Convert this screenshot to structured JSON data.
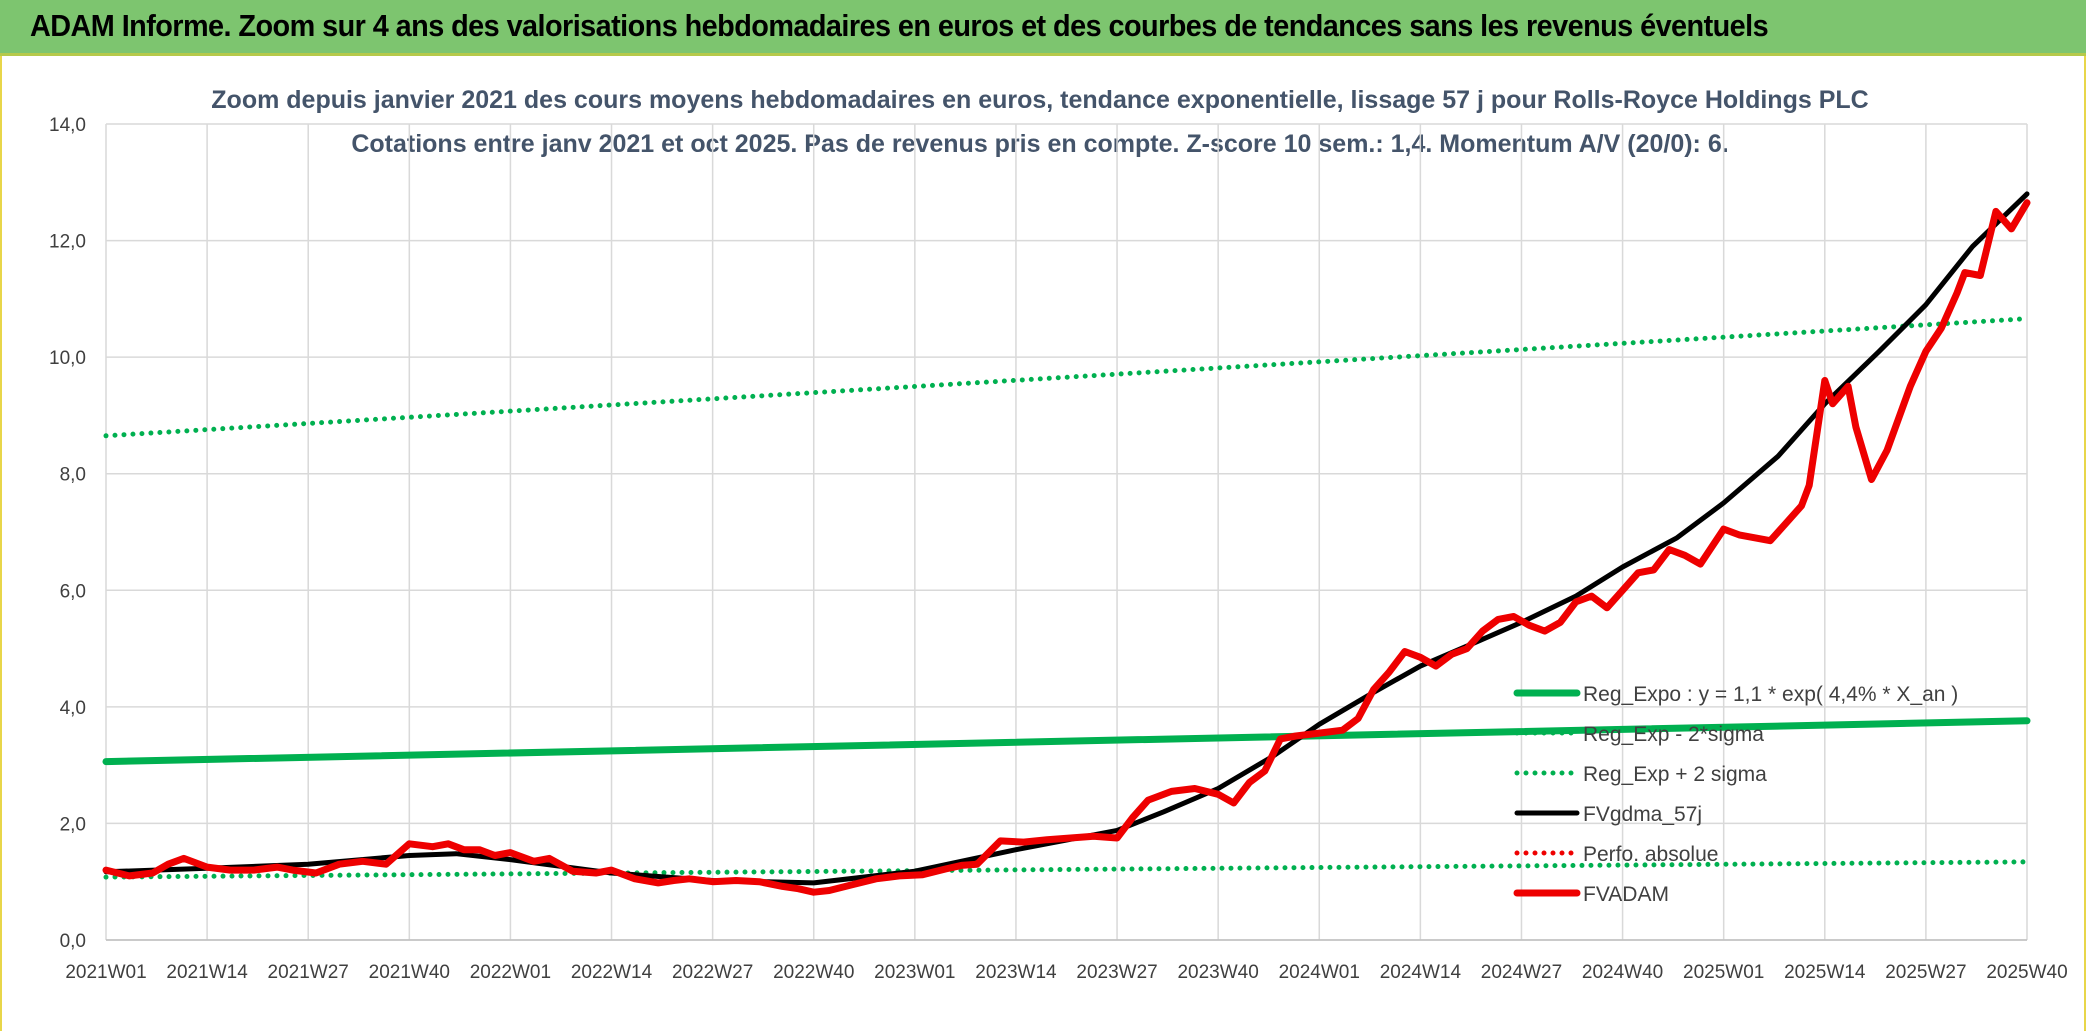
{
  "banner": {
    "title": "ADAM Informe. Zoom sur 4 ans des valorisations hebdomadaires en euros et des courbes de tendances sans les revenus éventuels"
  },
  "colors": {
    "banner_bg": "#7dc56f",
    "green": "#00b050",
    "red": "#ee0000",
    "black": "#000000",
    "grid": "#d9d9d9"
  },
  "chart_data": {
    "type": "line",
    "title": "Zoom depuis janvier 2021 des cours moyens hebdomadaires en euros, tendance exponentielle, lissage 57 j pour Rolls-Royce Holdings PLC",
    "subtitle": "Cotations entre janv 2021 et oct 2025. Pas de revenus pris en compte. Z-score 10 sem.: 1,4. Momentum A/V (20/0): 6.",
    "xlabel": "",
    "ylabel": "",
    "ylim": [
      0,
      14
    ],
    "yticks": [
      "0,0",
      "2,0",
      "4,0",
      "6,0",
      "8,0",
      "10,0",
      "12,0",
      "14,0"
    ],
    "x_range_weeks": [
      0,
      247
    ],
    "xtick_labels": [
      "2021W01",
      "2021W14",
      "2021W27",
      "2021W40",
      "2022W01",
      "2022W14",
      "2022W27",
      "2022W40",
      "2023W01",
      "2023W14",
      "2023W27",
      "2023W40",
      "2024W01",
      "2024W14",
      "2024W27",
      "2024W40",
      "2025W01",
      "2025W14",
      "2025W27",
      "2025W40"
    ],
    "xtick_weeks": [
      0,
      13,
      26,
      39,
      52,
      65,
      78,
      91,
      104,
      117,
      130,
      143,
      156,
      169,
      182,
      195,
      208,
      221,
      234,
      247
    ],
    "legend_position": "right-bottom",
    "series": [
      {
        "name": "Reg_Expo : y = 1,1 * exp( 4,4% *  X_an )",
        "style": "solid-thick",
        "color": "#00b050",
        "weeks": [
          0,
          247
        ],
        "values": [
          3.06,
          3.76
        ]
      },
      {
        "name": "Reg_Exp - 2*sigma",
        "style": "dotted",
        "color": "#00b050",
        "weeks": [
          0,
          247
        ],
        "values": [
          1.08,
          1.34
        ]
      },
      {
        "name": "Reg_Exp + 2 sigma",
        "style": "dotted",
        "color": "#00b050",
        "weeks": [
          0,
          247
        ],
        "values": [
          8.65,
          10.66
        ]
      },
      {
        "name": "FVgdma_57j",
        "style": "solid",
        "color": "#000000",
        "weeks": [
          0,
          13,
          26,
          39,
          45,
          52,
          65,
          78,
          91,
          104,
          117,
          130,
          136,
          143,
          150,
          156,
          163,
          169,
          176,
          182,
          189,
          195,
          202,
          208,
          215,
          221,
          228,
          234,
          240,
          247
        ],
        "values": [
          1.17,
          1.23,
          1.3,
          1.45,
          1.48,
          1.38,
          1.15,
          1.02,
          0.98,
          1.18,
          1.55,
          1.88,
          2.2,
          2.6,
          3.15,
          3.7,
          4.25,
          4.7,
          5.1,
          5.45,
          5.9,
          6.4,
          6.9,
          7.5,
          8.3,
          9.2,
          10.1,
          10.9,
          11.9,
          12.8
        ]
      },
      {
        "name": "Perfo. absolue",
        "style": "dotted",
        "color": "#ee0000",
        "weeks": [],
        "values": []
      },
      {
        "name": "FVADAM",
        "style": "solid-thick",
        "color": "#ee0000",
        "weeks": [
          0,
          3,
          6,
          8,
          10,
          13,
          16,
          19,
          22,
          24,
          27,
          30,
          33,
          36,
          39,
          42,
          44,
          46,
          48,
          50,
          52,
          55,
          57,
          60,
          63,
          65,
          68,
          71,
          73,
          75,
          78,
          81,
          84,
          87,
          89,
          91,
          93,
          96,
          99,
          102,
          105,
          108,
          110,
          112,
          115,
          118,
          121,
          124,
          127,
          130,
          132,
          134,
          137,
          140,
          143,
          145,
          147,
          149,
          151,
          153,
          156,
          159,
          161,
          163,
          165,
          167,
          169,
          171,
          173,
          175,
          177,
          179,
          181,
          183,
          185,
          187,
          189,
          191,
          193,
          195,
          197,
          199,
          201,
          203,
          205,
          208,
          210,
          212,
          214,
          216,
          218,
          219,
          221,
          222,
          224,
          225,
          227,
          229,
          232,
          234,
          236,
          238,
          239,
          241,
          243,
          245,
          247
        ],
        "values": [
          1.2,
          1.1,
          1.15,
          1.3,
          1.4,
          1.25,
          1.2,
          1.2,
          1.25,
          1.2,
          1.15,
          1.3,
          1.35,
          1.3,
          1.65,
          1.6,
          1.65,
          1.55,
          1.55,
          1.45,
          1.5,
          1.35,
          1.4,
          1.18,
          1.15,
          1.2,
          1.05,
          0.98,
          1.02,
          1.05,
          1.0,
          1.02,
          1.0,
          0.92,
          0.88,
          0.82,
          0.85,
          0.95,
          1.05,
          1.1,
          1.12,
          1.22,
          1.28,
          1.3,
          1.7,
          1.68,
          1.72,
          1.75,
          1.78,
          1.75,
          2.1,
          2.4,
          2.55,
          2.6,
          2.5,
          2.35,
          2.7,
          2.9,
          3.45,
          3.5,
          3.55,
          3.6,
          3.8,
          4.3,
          4.6,
          4.95,
          4.85,
          4.7,
          4.9,
          5.0,
          5.3,
          5.5,
          5.55,
          5.4,
          5.3,
          5.45,
          5.8,
          5.9,
          5.7,
          6.0,
          6.3,
          6.35,
          6.7,
          6.6,
          6.45,
          7.05,
          6.95,
          6.9,
          6.85,
          7.15,
          7.45,
          7.8,
          9.6,
          9.2,
          9.5,
          8.8,
          7.9,
          8.4,
          9.5,
          10.1,
          10.5,
          11.1,
          11.45,
          11.4,
          12.5,
          12.2,
          12.65
        ]
      }
    ]
  }
}
